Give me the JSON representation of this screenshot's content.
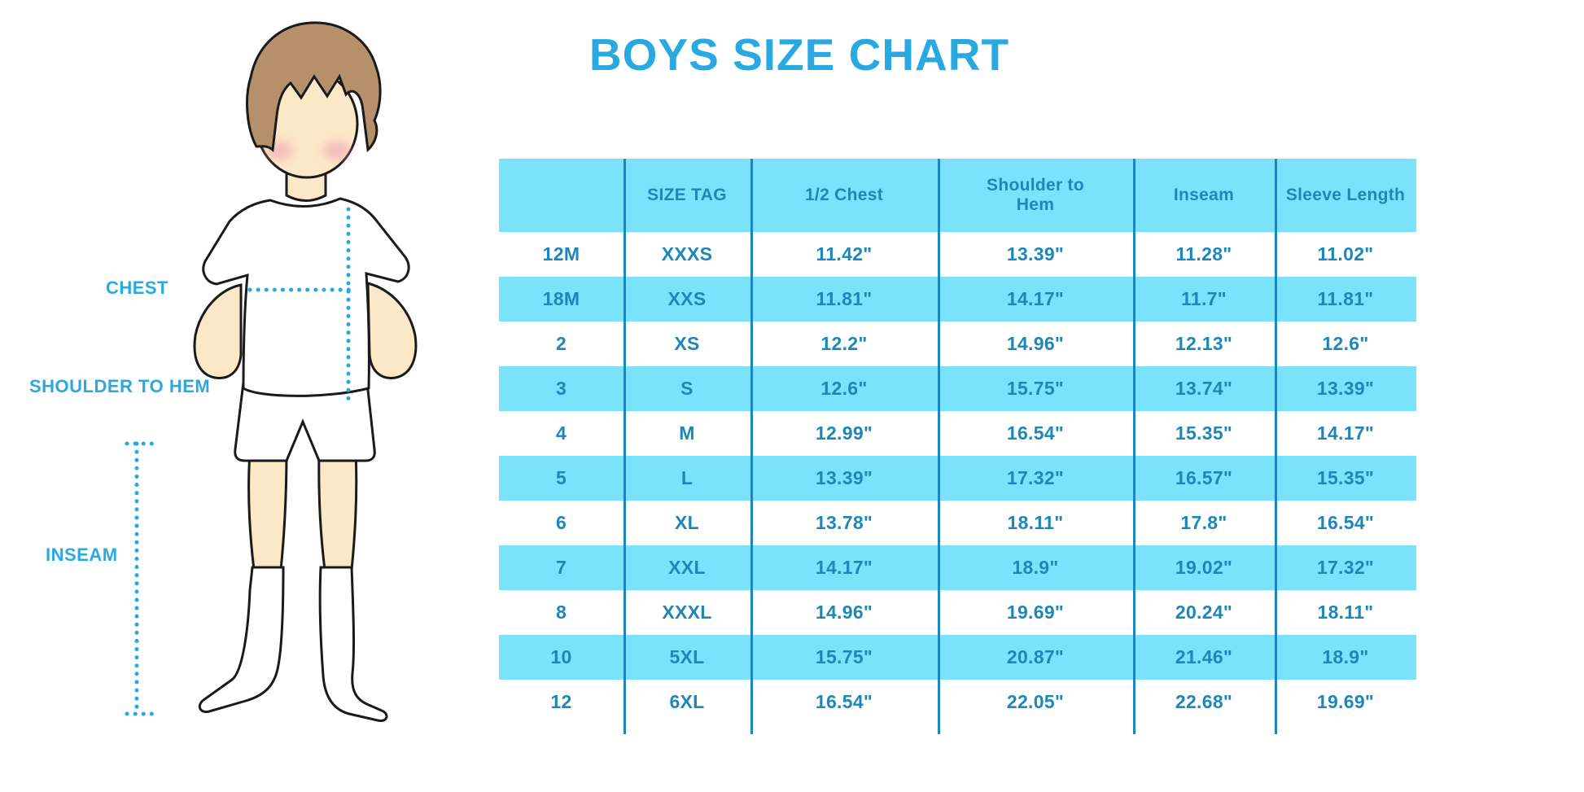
{
  "title": "BOYS SIZE CHART",
  "diagram": {
    "labels": {
      "chest": "CHEST",
      "shoulder_to_hem": "SHOULDER TO HEM",
      "inseam": "INSEAM"
    }
  },
  "chart_data": {
    "type": "table",
    "title": "BOYS SIZE CHART",
    "columns": [
      "",
      "SIZE TAG",
      "1/2 Chest",
      "Shoulder to Hem",
      "Inseam",
      "Sleeve Length"
    ],
    "rows": [
      [
        "12M",
        "XXXS",
        "11.42\"",
        "13.39\"",
        "11.28\"",
        "11.02\""
      ],
      [
        "18M",
        "XXS",
        "11.81\"",
        "14.17\"",
        "11.7\"",
        "11.81\""
      ],
      [
        "2",
        "XS",
        "12.2\"",
        "14.96\"",
        "12.13\"",
        "12.6\""
      ],
      [
        "3",
        "S",
        "12.6\"",
        "15.75\"",
        "13.74\"",
        "13.39\""
      ],
      [
        "4",
        "M",
        "12.99\"",
        "16.54\"",
        "15.35\"",
        "14.17\""
      ],
      [
        "5",
        "L",
        "13.39\"",
        "17.32\"",
        "16.57\"",
        "15.35\""
      ],
      [
        "6",
        "XL",
        "13.78\"",
        "18.11\"",
        "17.8\"",
        "16.54\""
      ],
      [
        "7",
        "XXL",
        "14.17\"",
        "18.9\"",
        "19.02\"",
        "17.32\""
      ],
      [
        "8",
        "XXXL",
        "14.96\"",
        "19.69\"",
        "20.24\"",
        "18.11\""
      ],
      [
        "10",
        "5XL",
        "15.75\"",
        "20.87\"",
        "21.46\"",
        "18.9\""
      ],
      [
        "12",
        "6XL",
        "16.54\"",
        "22.05\"",
        "22.68\"",
        "19.69\""
      ]
    ],
    "layout": {
      "striped": true,
      "stripe_rows": "header and alternating rows",
      "grid": "vertical dividers only"
    }
  },
  "colors": {
    "accent_blue": "#29A9E0",
    "table_text": "#1F86B8",
    "row_fill": "#7AE3FB",
    "divider_line": "#1B87BE",
    "skin": "#FBE8C6",
    "hair": "#B5906B",
    "blush": "#F29FB5"
  }
}
